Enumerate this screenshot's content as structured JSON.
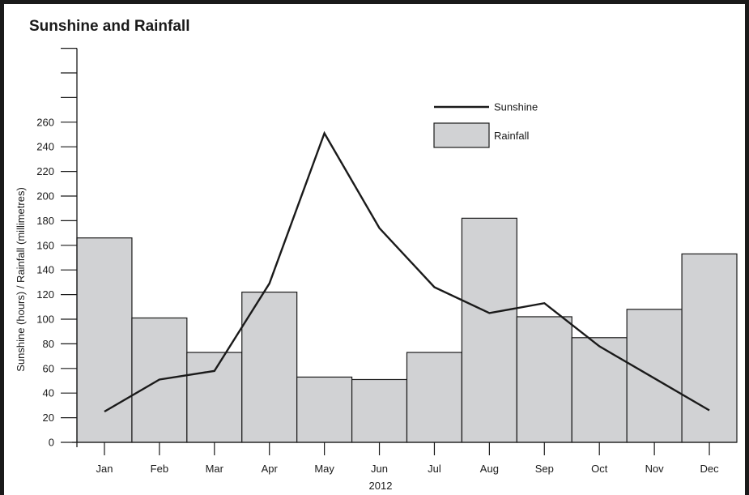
{
  "chart_data": {
    "type": "bar",
    "title": "Sunshine and Rainfall",
    "xlabel": "2012",
    "ylabel": "Sunshine (hours) / Rainfall (millimetres)",
    "categories": [
      "Jan",
      "Feb",
      "Mar",
      "Apr",
      "May",
      "Jun",
      "Jul",
      "Aug",
      "Sep",
      "Oct",
      "Nov",
      "Dec"
    ],
    "ylim": [
      0,
      320
    ],
    "yticks": [
      0,
      20,
      40,
      60,
      80,
      100,
      120,
      140,
      160,
      180,
      200,
      220,
      240,
      260,
      280,
      300,
      320
    ],
    "yticklabels": [
      "0",
      "20",
      "40",
      "60",
      "80",
      "100",
      "120",
      "140",
      "160",
      "180",
      "200",
      "220",
      "240",
      "260",
      "",
      "",
      ""
    ],
    "series": [
      {
        "name": "Rainfall",
        "type": "bar",
        "color": "#d1d2d4",
        "values": [
          166,
          101,
          73,
          122,
          53,
          51,
          73,
          182,
          102,
          85,
          108,
          153
        ]
      },
      {
        "name": "Sunshine",
        "type": "line",
        "color": "#1a1a1a",
        "values": [
          25,
          51,
          58,
          129,
          251,
          174,
          126,
          105,
          113,
          78,
          52,
          26
        ]
      }
    ],
    "legend": {
      "placement": "top-right"
    },
    "grid": false
  }
}
